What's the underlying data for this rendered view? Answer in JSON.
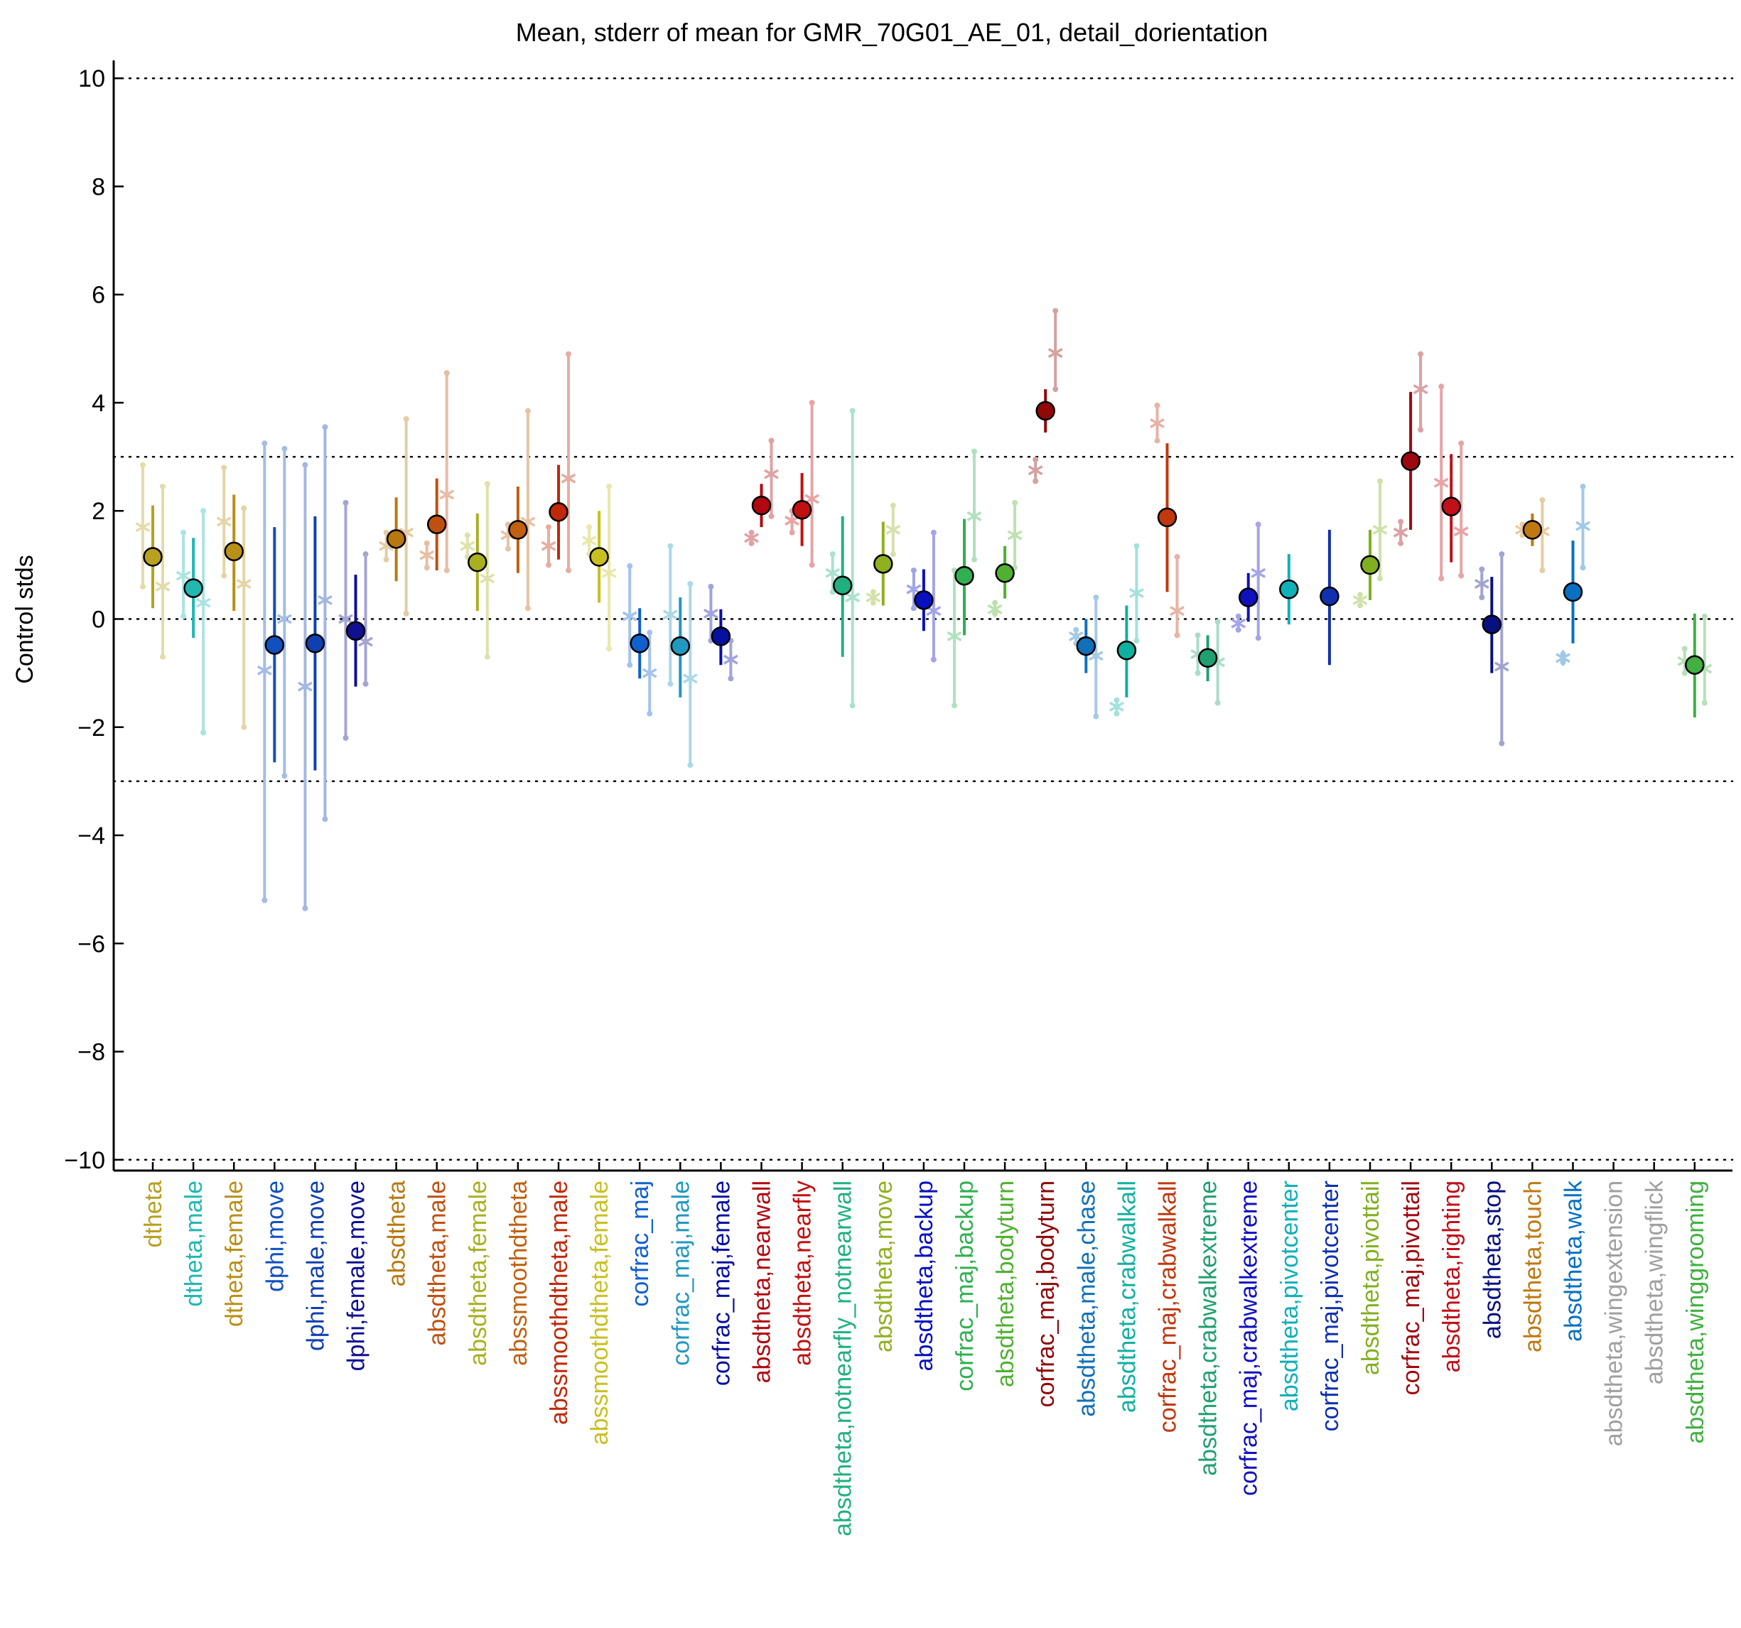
{
  "chart_data": {
    "type": "scatter",
    "title": "Mean, stderr of mean for GMR_70G01_AE_01, detail_dorientation",
    "ylabel": "Control stds",
    "xlabel": "",
    "ylim": [
      -10.2,
      10.2
    ],
    "yticks": [
      -10,
      -8,
      -6,
      -4,
      -2,
      0,
      2,
      4,
      6,
      8,
      10
    ],
    "ytick_labels": [
      "−10",
      "−8",
      "−6",
      "−4",
      "−2",
      "0",
      "2",
      "4",
      "6",
      "8",
      "10"
    ],
    "reference_lines": [
      -10,
      -3,
      0,
      3,
      10
    ],
    "grid": "dotted horizontal reference lines",
    "categories": [
      {
        "label": "dtheta",
        "color": "#b8a020",
        "mean": 1.15,
        "lo": 0.2,
        "hi": 2.1,
        "left": {
          "v": 1.7,
          "lo": 0.6,
          "hi": 2.85
        },
        "right": {
          "v": 0.6,
          "lo": -0.7,
          "hi": 2.45
        }
      },
      {
        "label": "dtheta,male",
        "color": "#20b8b0",
        "mean": 0.57,
        "lo": -0.35,
        "hi": 1.5,
        "left": {
          "v": 0.8,
          "lo": 0.05,
          "hi": 1.6
        },
        "right": {
          "v": 0.3,
          "lo": -2.1,
          "hi": 2.0
        }
      },
      {
        "label": "dtheta,female",
        "color": "#b89018",
        "mean": 1.25,
        "lo": 0.15,
        "hi": 2.3,
        "left": {
          "v": 1.8,
          "lo": 0.8,
          "hi": 2.8
        },
        "right": {
          "v": 0.65,
          "lo": -2.0,
          "hi": 2.05
        }
      },
      {
        "label": "dphi,move",
        "color": "#1050c0",
        "mean": -0.48,
        "lo": -2.65,
        "hi": 1.7,
        "left": {
          "v": -0.95,
          "lo": -5.2,
          "hi": 3.25
        },
        "right": {
          "v": 0.0,
          "lo": -2.9,
          "hi": 3.15
        }
      },
      {
        "label": "dphi,male,move",
        "color": "#1040b0",
        "mean": -0.45,
        "lo": -2.8,
        "hi": 1.9,
        "left": {
          "v": -1.25,
          "lo": -5.35,
          "hi": 2.85
        },
        "right": {
          "v": 0.35,
          "lo": -3.7,
          "hi": 3.55
        }
      },
      {
        "label": "dphi,female,move",
        "color": "#101090",
        "mean": -0.22,
        "lo": -1.25,
        "hi": 0.82,
        "left": {
          "v": 0.0,
          "lo": -2.2,
          "hi": 2.15
        },
        "right": {
          "v": -0.42,
          "lo": -1.2,
          "hi": 1.2
        }
      },
      {
        "label": "absdtheta",
        "color": "#b87810",
        "mean": 1.48,
        "lo": 0.7,
        "hi": 2.25,
        "left": {
          "v": 1.35,
          "lo": 1.1,
          "hi": 1.6
        },
        "right": {
          "v": 1.6,
          "lo": 0.1,
          "hi": 3.7
        }
      },
      {
        "label": "absdtheta,male",
        "color": "#c05010",
        "mean": 1.75,
        "lo": 0.9,
        "hi": 2.6,
        "left": {
          "v": 1.18,
          "lo": 0.95,
          "hi": 1.4
        },
        "right": {
          "v": 2.3,
          "lo": 0.9,
          "hi": 4.55
        }
      },
      {
        "label": "absdtheta,female",
        "color": "#a8b020",
        "mean": 1.05,
        "lo": 0.15,
        "hi": 1.95,
        "left": {
          "v": 1.35,
          "lo": 1.15,
          "hi": 1.55
        },
        "right": {
          "v": 0.75,
          "lo": -0.7,
          "hi": 2.5
        }
      },
      {
        "label": "abssmoothdtheta",
        "color": "#c06010",
        "mean": 1.65,
        "lo": 0.85,
        "hi": 2.45,
        "left": {
          "v": 1.55,
          "lo": 1.3,
          "hi": 1.75
        },
        "right": {
          "v": 1.8,
          "lo": 0.2,
          "hi": 3.85
        }
      },
      {
        "label": "abssmoothdtheta,male",
        "color": "#c02808",
        "mean": 1.98,
        "lo": 1.1,
        "hi": 2.85,
        "left": {
          "v": 1.35,
          "lo": 1.0,
          "hi": 1.7
        },
        "right": {
          "v": 2.6,
          "lo": 0.9,
          "hi": 4.9
        }
      },
      {
        "label": "abssmoothdtheta,female",
        "color": "#c8c020",
        "mean": 1.15,
        "lo": 0.3,
        "hi": 2.0,
        "left": {
          "v": 1.45,
          "lo": 1.2,
          "hi": 1.7
        },
        "right": {
          "v": 0.85,
          "lo": -0.55,
          "hi": 2.45
        }
      },
      {
        "label": "corfrac_maj",
        "color": "#1060d0",
        "mean": -0.45,
        "lo": -1.1,
        "hi": 0.2,
        "left": {
          "v": 0.05,
          "lo": -0.85,
          "hi": 0.98
        },
        "right": {
          "v": -1.0,
          "lo": -1.75,
          "hi": -0.25
        }
      },
      {
        "label": "corfrac_maj,male",
        "color": "#2098c0",
        "mean": -0.5,
        "lo": -1.45,
        "hi": 0.4,
        "left": {
          "v": 0.08,
          "lo": -1.2,
          "hi": 1.35
        },
        "right": {
          "v": -1.1,
          "lo": -2.7,
          "hi": 0.65
        }
      },
      {
        "label": "corfrac_maj,female",
        "color": "#0810a0",
        "mean": -0.32,
        "lo": -0.85,
        "hi": 0.18,
        "left": {
          "v": 0.1,
          "lo": -0.4,
          "hi": 0.6
        },
        "right": {
          "v": -0.75,
          "lo": -1.1,
          "hi": -0.4
        }
      },
      {
        "label": "absdtheta,nearwall",
        "color": "#b00810",
        "mean": 2.1,
        "lo": 1.7,
        "hi": 2.5,
        "left": {
          "v": 1.5,
          "lo": 1.4,
          "hi": 1.6
        },
        "right": {
          "v": 2.68,
          "lo": 1.9,
          "hi": 3.3
        }
      },
      {
        "label": "absdtheta,nearfly",
        "color": "#c01010",
        "mean": 2.02,
        "lo": 1.35,
        "hi": 2.7,
        "left": {
          "v": 1.82,
          "lo": 1.6,
          "hi": 2.0
        },
        "right": {
          "v": 2.22,
          "lo": 1.0,
          "hi": 4.0
        }
      },
      {
        "label": "absdtheta,notnearfly_notnearwall",
        "color": "#20b080",
        "mean": 0.62,
        "lo": -0.7,
        "hi": 1.9,
        "left": {
          "v": 0.85,
          "lo": 0.5,
          "hi": 1.2
        },
        "right": {
          "v": 0.4,
          "lo": -1.6,
          "hi": 3.85
        }
      },
      {
        "label": "absdtheta,move",
        "color": "#90b020",
        "mean": 1.02,
        "lo": 0.25,
        "hi": 1.8,
        "left": {
          "v": 0.4,
          "lo": 0.3,
          "hi": 0.5
        },
        "right": {
          "v": 1.65,
          "lo": 1.2,
          "hi": 2.1
        }
      },
      {
        "label": "absdtheta,backup",
        "color": "#0810c0",
        "mean": 0.35,
        "lo": -0.22,
        "hi": 0.92,
        "left": {
          "v": 0.55,
          "lo": 0.2,
          "hi": 0.9
        },
        "right": {
          "v": 0.15,
          "lo": -0.75,
          "hi": 1.6
        }
      },
      {
        "label": "corfrac_maj,backup",
        "color": "#30b050",
        "mean": 0.8,
        "lo": -0.3,
        "hi": 1.85,
        "left": {
          "v": -0.32,
          "lo": -1.6,
          "hi": 0.9
        },
        "right": {
          "v": 1.9,
          "lo": 1.1,
          "hi": 3.1
        }
      },
      {
        "label": "absdtheta,bodyturn",
        "color": "#50b030",
        "mean": 0.85,
        "lo": 0.38,
        "hi": 1.35,
        "left": {
          "v": 0.18,
          "lo": 0.1,
          "hi": 0.3
        },
        "right": {
          "v": 1.55,
          "lo": 0.95,
          "hi": 2.15
        }
      },
      {
        "label": "corfrac_maj,bodyturn",
        "color": "#900808",
        "mean": 3.85,
        "lo": 3.45,
        "hi": 4.25,
        "left": {
          "v": 2.75,
          "lo": 2.55,
          "hi": 2.95
        },
        "right": {
          "v": 4.92,
          "lo": 4.25,
          "hi": 5.7
        }
      },
      {
        "label": "absdtheta,male,chase",
        "color": "#1070b8",
        "mean": -0.5,
        "lo": -1.0,
        "hi": 0.0,
        "left": {
          "v": -0.32,
          "lo": -0.45,
          "hi": -0.2
        },
        "right": {
          "v": -0.68,
          "lo": -1.8,
          "hi": 0.4
        }
      },
      {
        "label": "absdtheta,crabwalkall",
        "color": "#10b0a0",
        "mean": -0.58,
        "lo": -1.45,
        "hi": 0.25,
        "left": {
          "v": -1.62,
          "lo": -1.75,
          "hi": -1.5
        },
        "right": {
          "v": 0.48,
          "lo": -0.4,
          "hi": 1.35
        }
      },
      {
        "label": "corfrac_maj,crabwalkall",
        "color": "#c03810",
        "mean": 1.88,
        "lo": 0.5,
        "hi": 3.25,
        "left": {
          "v": 3.62,
          "lo": 3.3,
          "hi": 3.95
        },
        "right": {
          "v": 0.15,
          "lo": -0.3,
          "hi": 1.15
        }
      },
      {
        "label": "absdtheta,crabwalkextreme",
        "color": "#20a070",
        "mean": -0.72,
        "lo": -1.15,
        "hi": -0.3,
        "left": {
          "v": -0.65,
          "lo": -1.0,
          "hi": -0.3
        },
        "right": {
          "v": -0.8,
          "lo": -1.55,
          "hi": -0.05
        }
      },
      {
        "label": "corfrac_maj,crabwalkextreme",
        "color": "#1010c0",
        "mean": 0.4,
        "lo": -0.05,
        "hi": 0.85,
        "left": {
          "v": -0.08,
          "lo": -0.2,
          "hi": 0.05
        },
        "right": {
          "v": 0.85,
          "lo": -0.35,
          "hi": 1.75
        }
      },
      {
        "label": "absdtheta,pivotcenter",
        "color": "#10b0b8",
        "mean": 0.55,
        "lo": -0.1,
        "hi": 1.2,
        "left": null,
        "right": null
      },
      {
        "label": "corfrac_maj,pivotcenter",
        "color": "#1030b0",
        "mean": 0.42,
        "lo": -0.85,
        "hi": 1.65,
        "left": null,
        "right": null
      },
      {
        "label": "absdtheta,pivottail",
        "color": "#80b020",
        "mean": 1.0,
        "lo": 0.35,
        "hi": 1.65,
        "left": {
          "v": 0.35,
          "lo": 0.25,
          "hi": 0.45
        },
        "right": {
          "v": 1.65,
          "lo": 0.75,
          "hi": 2.55
        }
      },
      {
        "label": "corfrac_maj,pivottail",
        "color": "#a00810",
        "mean": 2.92,
        "lo": 1.65,
        "hi": 4.2,
        "left": {
          "v": 1.6,
          "lo": 1.4,
          "hi": 1.8
        },
        "right": {
          "v": 4.25,
          "lo": 3.5,
          "hi": 4.9
        }
      },
      {
        "label": "absdtheta,righting",
        "color": "#c01018",
        "mean": 2.08,
        "lo": 1.05,
        "hi": 3.05,
        "left": {
          "v": 2.52,
          "lo": 0.75,
          "hi": 4.3
        },
        "right": {
          "v": 1.62,
          "lo": 0.8,
          "hi": 3.25
        }
      },
      {
        "label": "absdtheta,stop",
        "color": "#081080",
        "mean": -0.1,
        "lo": -1.0,
        "hi": 0.78,
        "left": {
          "v": 0.65,
          "lo": 0.4,
          "hi": 0.92
        },
        "right": {
          "v": -0.88,
          "lo": -2.3,
          "hi": 1.2
        }
      },
      {
        "label": "absdtheta,touch",
        "color": "#c07810",
        "mean": 1.65,
        "lo": 1.35,
        "hi": 1.95,
        "left": {
          "v": 1.65,
          "lo": 1.55,
          "hi": 1.75
        },
        "right": {
          "v": 1.62,
          "lo": 0.9,
          "hi": 2.2
        }
      },
      {
        "label": "absdtheta,walk",
        "color": "#0870c0",
        "mean": 0.5,
        "lo": -0.45,
        "hi": 1.45,
        "left": {
          "v": -0.72,
          "lo": -0.8,
          "hi": -0.65
        },
        "right": {
          "v": 1.72,
          "lo": 0.95,
          "hi": 2.45
        }
      },
      {
        "label": "absdtheta,wingextension",
        "color": "#a0a0a0",
        "mean": null,
        "lo": null,
        "hi": null,
        "left": null,
        "right": null
      },
      {
        "label": "absdtheta,wingflick",
        "color": "#a0a0a0",
        "mean": null,
        "lo": null,
        "hi": null,
        "left": null,
        "right": null
      },
      {
        "label": "absdtheta,winggrooming",
        "color": "#40b040",
        "mean": -0.85,
        "lo": -1.82,
        "hi": 0.1,
        "left": {
          "v": -0.78,
          "lo": -1.0,
          "hi": -0.55
        },
        "right": {
          "v": -0.92,
          "lo": -1.55,
          "hi": 0.05
        }
      }
    ]
  }
}
